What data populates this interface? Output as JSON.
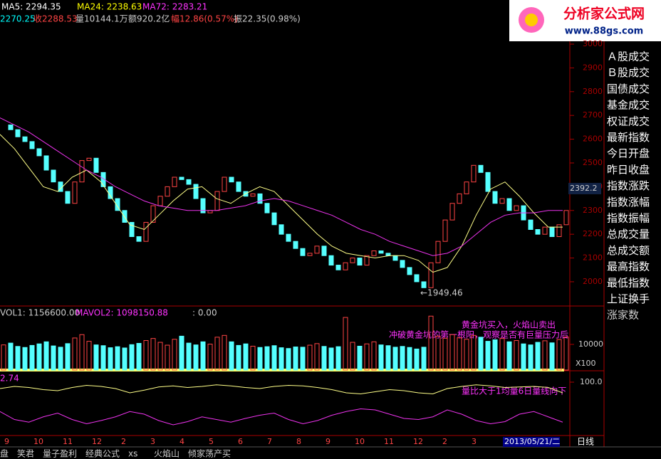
{
  "header": {
    "ma5": "MA5: 2294.35",
    "ma24": "MA24: 2238.63",
    "ma72": "MA72: 2283.21",
    "open": "2270.25",
    "close": "收2288.53",
    "volume": "量10144.1万",
    "amount": "额920.2亿",
    "change": "幅12.86(0.57%)",
    "amplitude": "振22.35(0.98%)"
  },
  "logo": {
    "title": "分析家公式网",
    "url": "www.88gs.com"
  },
  "price_panel": {
    "ylim": [
      1898,
      3036
    ],
    "yticks": [
      3000,
      2900,
      2800,
      2700,
      2600,
      2500,
      2400,
      2300,
      2200,
      2100,
      2000
    ],
    "current": {
      "value": 2392.2,
      "label": "2392.2"
    },
    "low_label": "←1949.46",
    "closes": [
      2660,
      2640,
      2610,
      2590,
      2560,
      2530,
      2470,
      2420,
      2380,
      2330,
      2420,
      2510,
      2520,
      2460,
      2400,
      2350,
      2300,
      2250,
      2190,
      2170,
      2250,
      2320,
      2360,
      2400,
      2440,
      2430,
      2410,
      2350,
      2290,
      2300,
      2380,
      2440,
      2420,
      2380,
      2360,
      2370,
      2330,
      2290,
      2240,
      2200,
      2170,
      2140,
      2110,
      2120,
      2150,
      2110,
      2070,
      2050,
      2080,
      2100,
      2070,
      2110,
      2130,
      2120,
      2110,
      2090,
      2060,
      2030,
      2000,
      1975,
      2080,
      2170,
      2260,
      2330,
      2370,
      2420,
      2490,
      2460,
      2380,
      2330,
      2350,
      2300,
      2320,
      2260,
      2220,
      2200,
      2230,
      2190,
      2240,
      2300
    ],
    "ma24": [
      2620,
      2560,
      2480,
      2400,
      2380,
      2440,
      2470,
      2420,
      2330,
      2240,
      2220,
      2280,
      2340,
      2390,
      2400,
      2350,
      2330,
      2370,
      2400,
      2380,
      2320,
      2260,
      2200,
      2150,
      2120,
      2110,
      2100,
      2110,
      2110,
      2090,
      2040,
      2060,
      2150,
      2280,
      2390,
      2420,
      2360,
      2290,
      2230,
      2230
    ],
    "ma72": [
      2690,
      2660,
      2630,
      2590,
      2550,
      2510,
      2470,
      2440,
      2400,
      2370,
      2340,
      2320,
      2310,
      2300,
      2300,
      2300,
      2310,
      2320,
      2340,
      2350,
      2340,
      2320,
      2300,
      2280,
      2250,
      2220,
      2200,
      2170,
      2150,
      2130,
      2110,
      2120,
      2150,
      2200,
      2250,
      2280,
      2290,
      2290,
      2300,
      2300
    ]
  },
  "volume_panel": {
    "vol1": "VOL1: 1156600.00",
    "mavol2": "MAVOL2: 1098150.88",
    "extra": ": 0.00",
    "unit": "X100",
    "ylim": [
      0,
      24400
    ],
    "yticks": [
      10000
    ],
    "annotation1": "黄金坑买入，火焰山卖出",
    "annotation2": "冲破黄金坑的第一根阳，观察是否有巨量压力后",
    "values": [
      9800,
      10500,
      9200,
      8800,
      9600,
      10200,
      11000,
      9400,
      8900,
      10300,
      12500,
      13800,
      11200,
      9800,
      9500,
      8700,
      9100,
      8600,
      9900,
      10400,
      11500,
      12300,
      10800,
      9700,
      12000,
      13200,
      10500,
      9800,
      11000,
      10100,
      12800,
      13500,
      11000,
      9600,
      10200,
      9300,
      8800,
      9100,
      9500,
      8700,
      8400,
      9000,
      8900,
      9700,
      10300,
      9200,
      8600,
      9100,
      20500,
      10800,
      9300,
      10200,
      11000,
      9800,
      9500,
      8900,
      9200,
      8800,
      8200,
      8900,
      21000,
      13200,
      12400,
      13800,
      12600,
      12000,
      13500,
      12800,
      11200,
      11800,
      12300,
      11000,
      11500,
      10200,
      9800,
      10800,
      11400,
      10600,
      11900,
      12900
    ]
  },
  "indicator_panel": {
    "value_text": "2.74",
    "ylim": [
      0,
      120
    ],
    "yticks": [
      {
        "value": 100,
        "label": "100.0"
      }
    ],
    "annotation": "量比大于1均量6日量线向下",
    "line1": [
      88,
      92,
      90,
      86,
      84,
      90,
      94,
      92,
      88,
      80,
      85,
      91,
      93,
      90,
      92,
      95,
      93,
      90,
      88,
      92,
      94,
      93,
      90,
      86,
      80,
      78,
      82,
      86,
      84,
      80,
      78,
      88,
      92,
      95,
      93,
      90,
      91,
      92,
      90,
      80
    ],
    "line2": [
      45,
      30,
      25,
      35,
      42,
      30,
      22,
      28,
      35,
      45,
      40,
      28,
      20,
      26,
      35,
      30,
      25,
      32,
      38,
      42,
      30,
      22,
      28,
      38,
      45,
      50,
      48,
      40,
      32,
      30,
      35,
      48,
      40,
      28,
      22,
      26,
      40,
      45,
      35,
      25
    ]
  },
  "axis": {
    "months": [
      "9",
      "10",
      "11",
      "12",
      "2",
      "3",
      "4",
      "5",
      "6",
      "7",
      "8",
      "9",
      "10",
      "11",
      "12",
      "2",
      "3"
    ],
    "date": "2013/05/21/二",
    "period": "日线"
  },
  "menu": [
    "Ａ股成交",
    "Ｂ股成交",
    "国债成交",
    "基金成交",
    "权证成交",
    "最新指数",
    "今日开盘",
    "昨日收盘",
    "指数涨跌",
    "指数涨幅",
    "指数振幅",
    "总成交量",
    "总成交额",
    "最高指数",
    "最低指数",
    "上证换手",
    "涨家数"
  ],
  "tabs": [
    "盘",
    "笑君",
    "量子盈利",
    "经典公式",
    "xs",
    "火焰山",
    "倾家荡产买"
  ]
}
